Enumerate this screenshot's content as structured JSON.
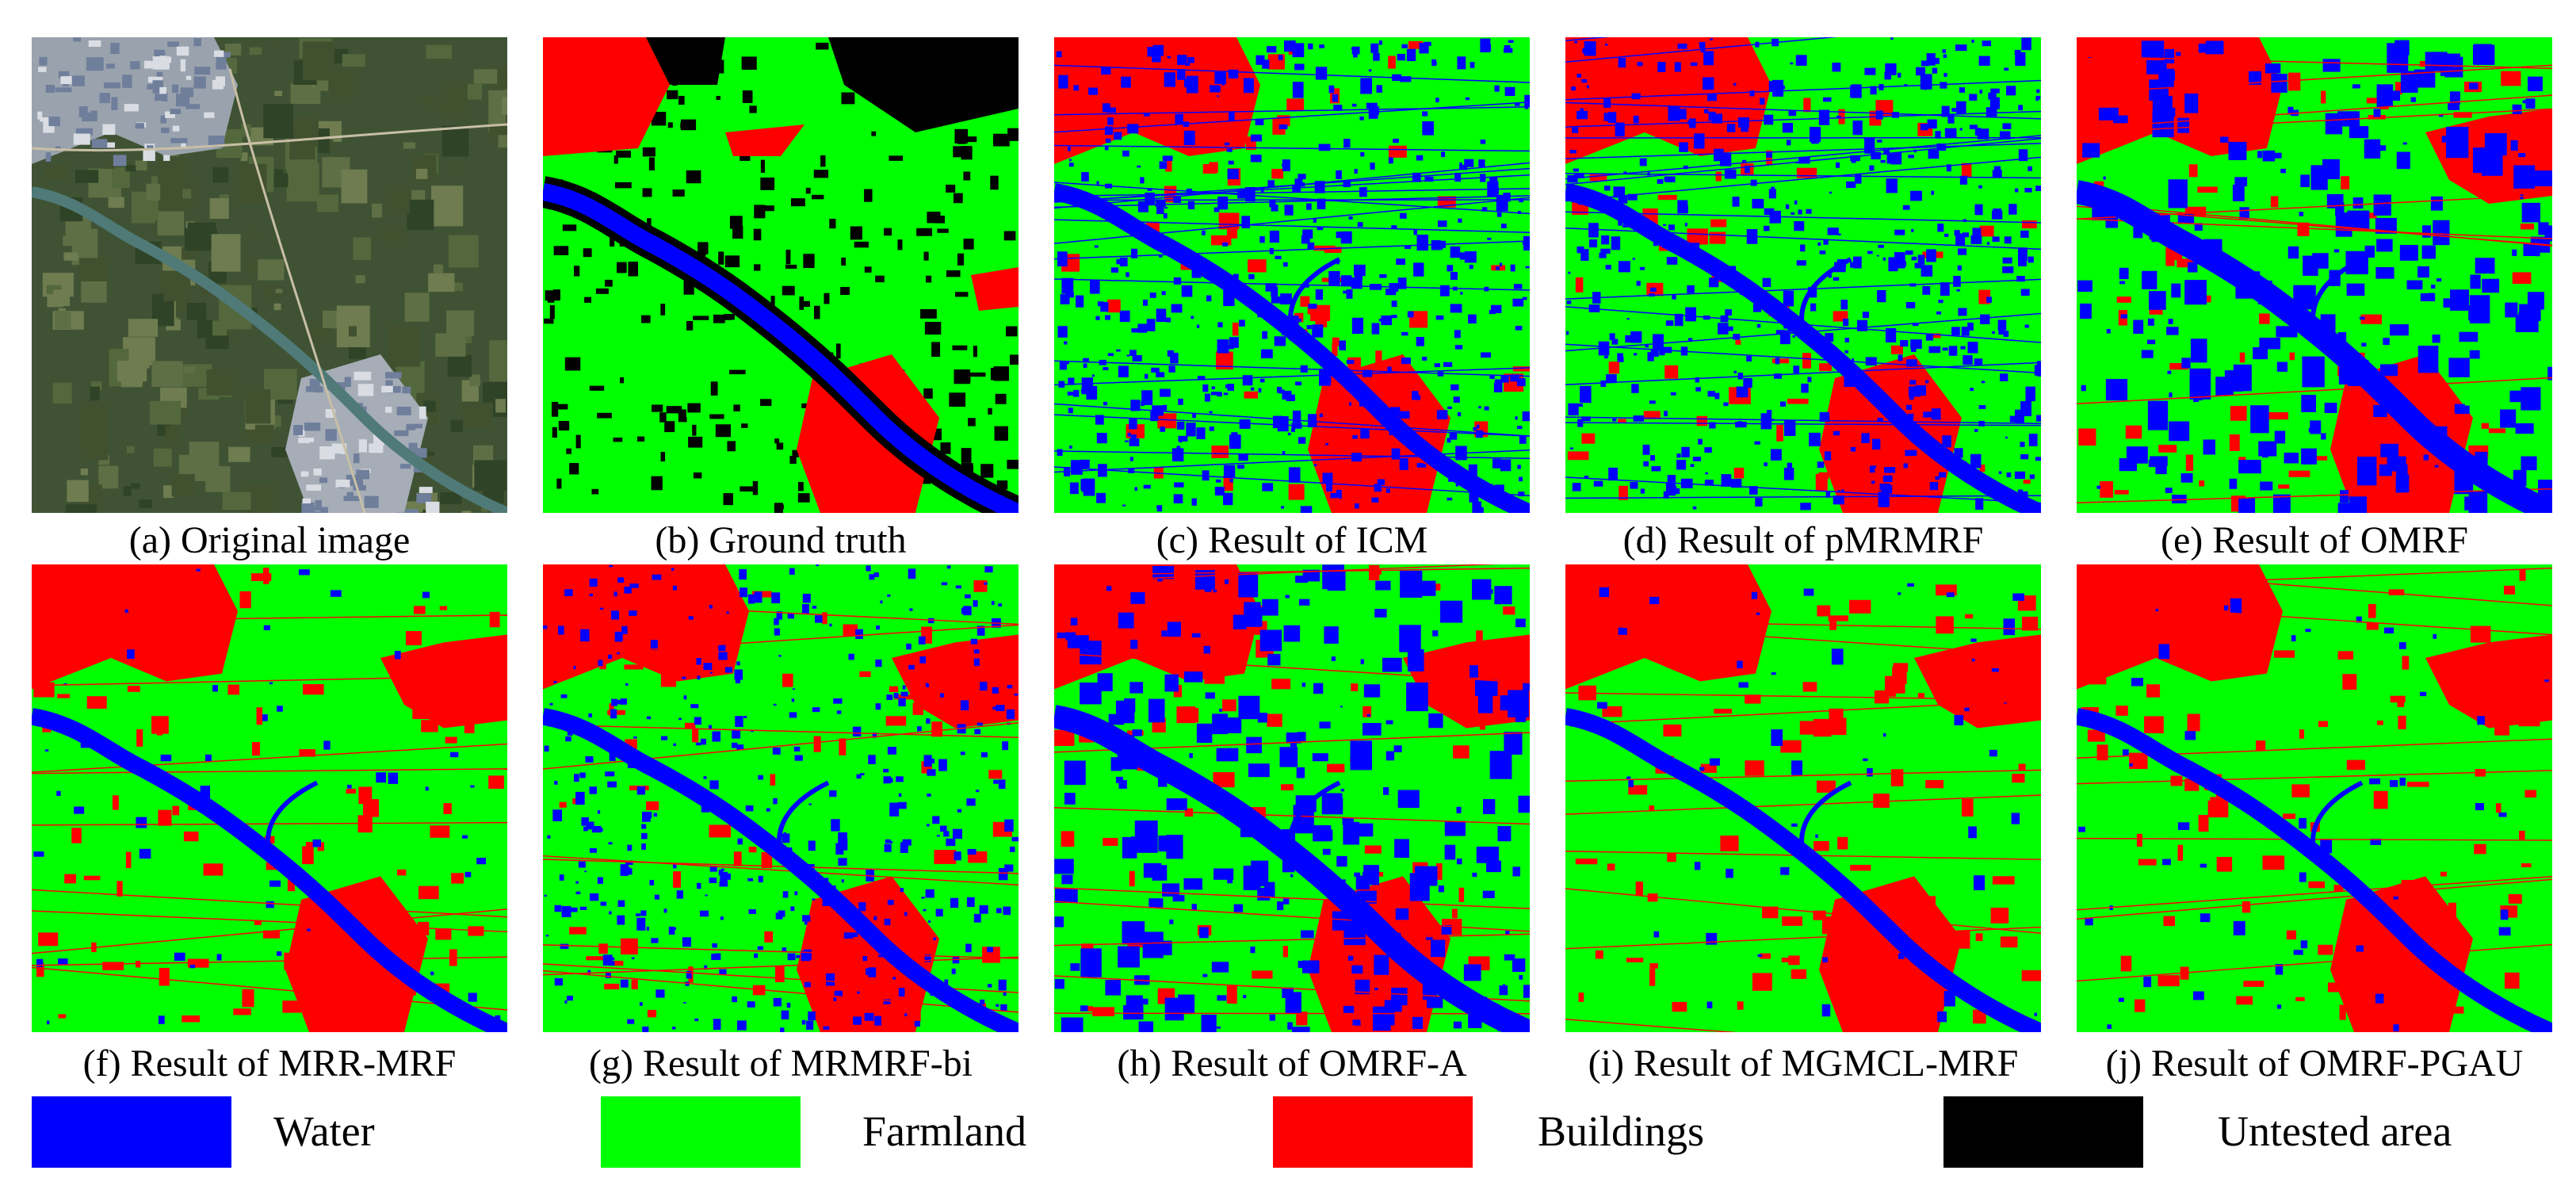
{
  "figure": {
    "panels": [
      {
        "id": "a",
        "caption": "(a) Original image",
        "kind": "photo"
      },
      {
        "id": "b",
        "caption": "(b) Ground truth",
        "kind": "ground-truth"
      },
      {
        "id": "c",
        "caption": "(c) Result of ICM",
        "kind": "noisy"
      },
      {
        "id": "d",
        "caption": "(d) Result of pMRMRF",
        "kind": "noisy"
      },
      {
        "id": "e",
        "caption": "(e) Result of OMRF",
        "kind": "blocky"
      },
      {
        "id": "f",
        "caption": "(f) Result of MRR-MRF",
        "kind": "smooth"
      },
      {
        "id": "g",
        "caption": "(g) Result of MRMRF-bi",
        "kind": "speckled"
      },
      {
        "id": "h",
        "caption": "(h) Result of OMRF-A",
        "kind": "blocky"
      },
      {
        "id": "i",
        "caption": "(i) Result of MGMCL-MRF",
        "kind": "smooth"
      },
      {
        "id": "j",
        "caption": "(j) Result of OMRF-PGAU",
        "kind": "smooth"
      }
    ]
  },
  "legend": [
    {
      "label": "Water",
      "color": "#0000ff"
    },
    {
      "label": "Farmland",
      "color": "#00ff00"
    },
    {
      "label": "Buildings",
      "color": "#ff0000"
    },
    {
      "label": "Untested area",
      "color": "#000000"
    }
  ],
  "colors": {
    "water": "#0000ff",
    "farmland": "#00ff00",
    "buildings": "#ff0000",
    "untested": "#000000"
  }
}
